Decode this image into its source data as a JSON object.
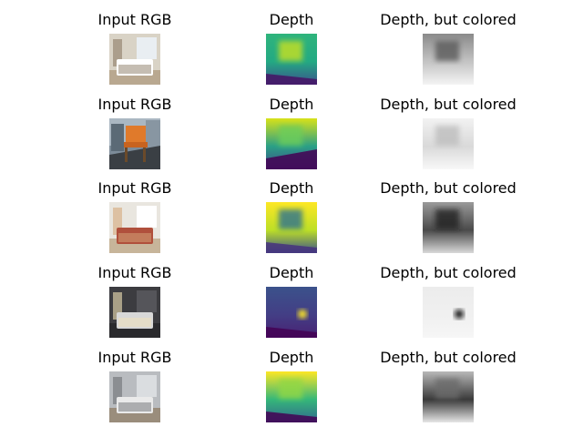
{
  "figure": {
    "column_titles": [
      "Input RGB",
      "Depth",
      "Depth, but colored"
    ],
    "rows": [
      {
        "rgb": "bedroom with window and curtains",
        "depth": {
          "top": "#2fb47c",
          "mid": "#23a983",
          "bottom": "#3b528b",
          "accent": "#c8e020",
          "floor": "#471365"
        },
        "gray": {
          "top": "#8a8a8a",
          "mid": "#c4c4c4",
          "bottom": "#f4f4f4",
          "accent": "#5a5a5a"
        }
      },
      {
        "rgb": "orange wooden chair on street",
        "depth": {
          "top": "#d8e219",
          "mid": "#2a9f86",
          "bottom": "#3d4a89",
          "accent": "#6ccd5a",
          "floor": "#440154"
        },
        "gray": {
          "top": "#f2f2f2",
          "mid": "#d9d9d9",
          "bottom": "#f8f8f8",
          "accent": "#bdbdbd"
        }
      },
      {
        "rgb": "bedroom with patterned bedspread",
        "depth": {
          "top": "#fde725",
          "mid": "#bddf26",
          "bottom": "#3b528b",
          "accent": "#2c728e",
          "floor": "#46327e"
        },
        "gray": {
          "top": "#9a9a9a",
          "mid": "#4a4a4a",
          "bottom": "#d8d8d8",
          "accent": "#222222"
        }
      },
      {
        "rgb": "dark bedroom with lamps",
        "depth": {
          "top": "#3b528b",
          "mid": "#433e85",
          "bottom": "#482173",
          "accent": "#fde725",
          "floor": "#440154"
        },
        "gray": {
          "top": "#ececec",
          "mid": "#f0f0f0",
          "bottom": "#f6f6f6",
          "accent": "#111111"
        }
      },
      {
        "rgb": "bedroom with grey headboard",
        "depth": {
          "top": "#fde725",
          "mid": "#35b779",
          "bottom": "#31688e",
          "accent": "#90d743",
          "floor": "#440154"
        },
        "gray": {
          "top": "#b8b8b8",
          "mid": "#3a3a3a",
          "bottom": "#e6e6e6",
          "accent": "#6a6a6a"
        }
      }
    ]
  }
}
